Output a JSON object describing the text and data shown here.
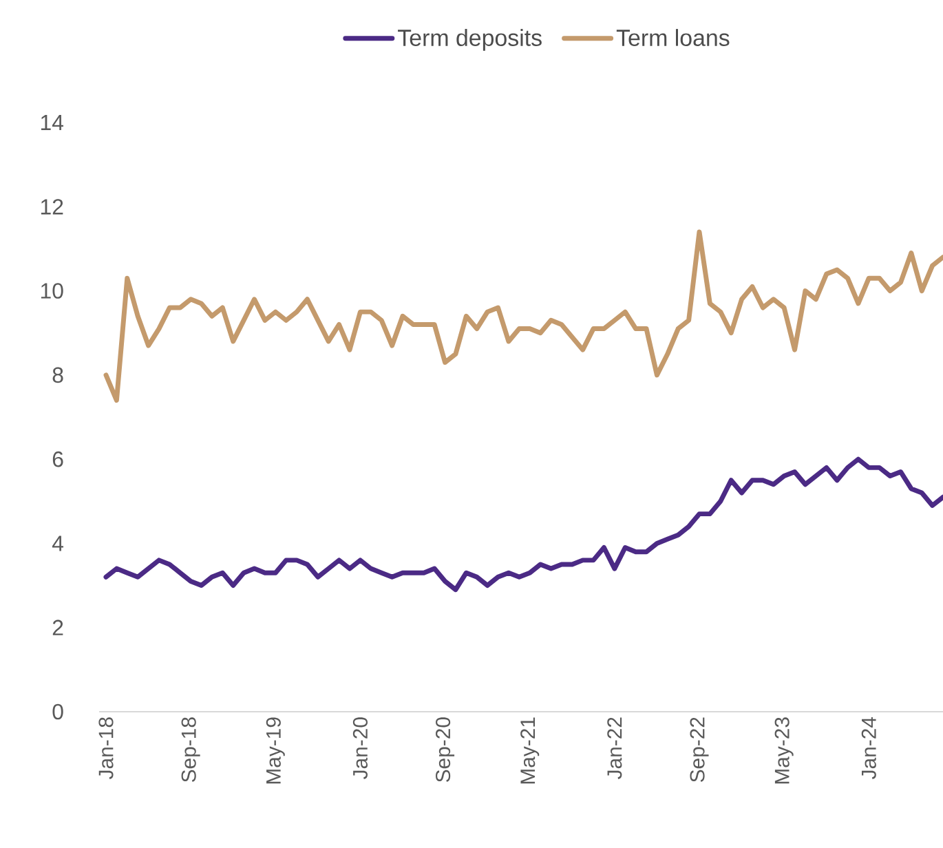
{
  "chart_data": {
    "type": "line",
    "categories": [
      "Jan-18",
      null,
      null,
      null,
      null,
      null,
      null,
      null,
      "Sep-18",
      null,
      null,
      null,
      null,
      null,
      null,
      null,
      "May-19",
      null,
      null,
      null,
      null,
      null,
      null,
      null,
      "Jan-20",
      null,
      null,
      null,
      null,
      null,
      null,
      null,
      "Sep-20",
      null,
      null,
      null,
      null,
      null,
      null,
      null,
      "May-21",
      null,
      null,
      null,
      null,
      null,
      null,
      null,
      "Jan-22",
      null,
      null,
      null,
      null,
      null,
      null,
      null,
      "Sep-22",
      null,
      null,
      null,
      null,
      null,
      null,
      null,
      "May-23",
      null,
      null,
      null,
      null,
      null,
      null,
      null,
      "Jan-24",
      null,
      null,
      null,
      null,
      null,
      null,
      null
    ],
    "series": [
      {
        "name": "Term deposits",
        "color": "#4b2a85",
        "values": [
          3.2,
          3.4,
          3.3,
          3.2,
          3.4,
          3.6,
          3.5,
          3.3,
          3.1,
          3.0,
          3.2,
          3.3,
          3.0,
          3.3,
          3.4,
          3.3,
          3.3,
          3.6,
          3.6,
          3.5,
          3.2,
          3.4,
          3.6,
          3.4,
          3.6,
          3.4,
          3.3,
          3.2,
          3.3,
          3.3,
          3.3,
          3.4,
          3.1,
          2.9,
          3.3,
          3.2,
          3.0,
          3.2,
          3.3,
          3.2,
          3.3,
          3.5,
          3.4,
          3.5,
          3.5,
          3.6,
          3.6,
          3.9,
          3.4,
          3.9,
          3.8,
          3.8,
          4.0,
          4.1,
          4.2,
          4.4,
          4.7,
          4.7,
          5.0,
          5.5,
          5.2,
          5.5,
          5.5,
          5.4,
          5.6,
          5.7,
          5.4,
          5.6,
          5.8,
          5.5,
          5.8,
          6.0,
          5.8,
          5.8,
          5.6,
          5.7,
          5.3,
          5.2,
          4.9,
          5.1
        ]
      },
      {
        "name": "Term loans",
        "color": "#c49a6c",
        "values": [
          8.0,
          7.4,
          10.3,
          9.4,
          8.7,
          9.1,
          9.6,
          9.6,
          9.8,
          9.7,
          9.4,
          9.6,
          8.8,
          9.3,
          9.8,
          9.3,
          9.5,
          9.3,
          9.5,
          9.8,
          9.3,
          8.8,
          9.2,
          8.6,
          9.5,
          9.5,
          9.3,
          8.7,
          9.4,
          9.2,
          9.2,
          9.2,
          8.3,
          8.5,
          9.4,
          9.1,
          9.5,
          9.6,
          8.8,
          9.1,
          9.1,
          9.0,
          9.3,
          9.2,
          8.9,
          8.6,
          9.1,
          9.1,
          9.3,
          9.5,
          9.1,
          9.1,
          8.0,
          8.5,
          9.1,
          9.3,
          11.4,
          9.7,
          9.5,
          9.0,
          9.8,
          10.1,
          9.6,
          9.8,
          9.6,
          8.6,
          10.0,
          9.8,
          10.4,
          10.5,
          10.3,
          9.7,
          10.3,
          10.3,
          10.0,
          10.2,
          10.9,
          10.0,
          10.6,
          10.8
        ]
      }
    ],
    "ylim": [
      0,
      14
    ],
    "yticks": [
      0,
      2,
      4,
      6,
      8,
      10,
      12,
      14
    ],
    "legend": "top",
    "line_style": "solid"
  }
}
